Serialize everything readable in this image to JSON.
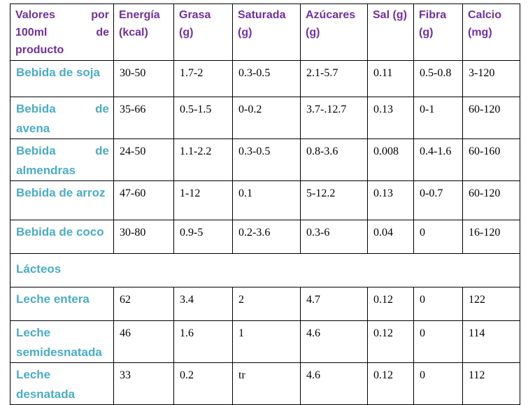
{
  "table": {
    "headers": [
      "Valores por 100ml de producto",
      "Energía (kcal)",
      "Grasa (g)",
      "Saturada (g)",
      "Azúcares (g)",
      "Sal (g)",
      "Fibra (g)",
      "Calcio (mg)"
    ],
    "rows": [
      {
        "label": "Bebida de soja",
        "values": [
          "30-50",
          "1.7-2",
          "0.3-0.5",
          "2.1-5.7",
          "0.11",
          "0.5-0.8",
          "3-120"
        ]
      },
      {
        "label": "Bebida de avena",
        "values": [
          "35-66",
          "0.5-1.5",
          "0-0.2",
          "3.7-.12.7",
          "0.13",
          "0-1",
          "60-120"
        ]
      },
      {
        "label": "Bebida de almendras",
        "values": [
          "24-50",
          "1.1-2.2",
          "0.3-0.5",
          "0.8-3.6",
          "0.008",
          "0.4-1.6",
          "60-160"
        ]
      },
      {
        "label": "Bebida de arroz",
        "values": [
          "47-60",
          "1-12",
          "0.1",
          "5-12.2",
          "0.13",
          "0-0.7",
          "60-120"
        ]
      },
      {
        "label": "Bebida de coco",
        "values": [
          "30-80",
          "0.9-5",
          "0.2-3.6",
          "0.3-6",
          "0.04",
          "0",
          "16-120"
        ]
      }
    ],
    "section_label": "Lácteos",
    "dairy_rows": [
      {
        "label": "Leche entera",
        "values": [
          "62",
          "3.4",
          "2",
          "4.7",
          "0.12",
          "0",
          "122"
        ]
      },
      {
        "label": "Leche semidesnatada",
        "values": [
          "46",
          "1.6",
          "1",
          "4.6",
          "0.12",
          "0",
          "114"
        ]
      },
      {
        "label": "Leche desnatada",
        "values": [
          "33",
          "0.2",
          "tr",
          "4.6",
          "0.12",
          "0",
          "112"
        ]
      }
    ]
  }
}
